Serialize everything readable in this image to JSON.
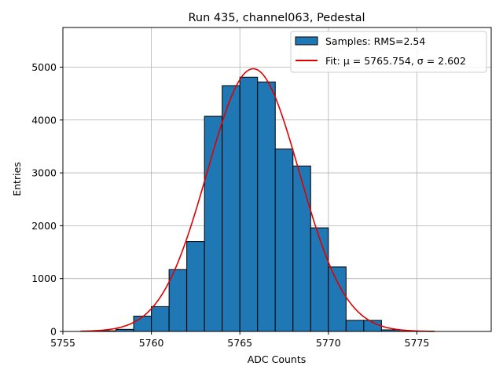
{
  "chart_data": {
    "type": "bar",
    "title": "Run 435, channel063, Pedestal",
    "xlabel": "ADC Counts",
    "ylabel": "Entries",
    "xlim": [
      5755,
      5779.2
    ],
    "ylim": [
      0,
      5750
    ],
    "xticks": [
      5755,
      5760,
      5765,
      5770,
      5775
    ],
    "yticks": [
      0,
      1000,
      2000,
      3000,
      4000,
      5000
    ],
    "grid": true,
    "legend_position": "top-right",
    "histogram": {
      "name": "Samples: RMS=2.54",
      "color": "#1f77b4",
      "bin_width": 1,
      "bin_starts": [
        5756,
        5757,
        5758,
        5759,
        5760,
        5761,
        5762,
        5763,
        5764,
        5765,
        5766,
        5767,
        5768,
        5769,
        5770,
        5771,
        5772,
        5773,
        5774,
        5775
      ],
      "values": [
        5,
        12,
        40,
        290,
        470,
        1170,
        1700,
        4070,
        4650,
        4810,
        4720,
        3450,
        3130,
        1960,
        1220,
        210,
        210,
        30,
        5,
        2
      ]
    },
    "fit": {
      "name": "Fit: μ = 5765.754, σ = 2.602",
      "color": "#e00000",
      "mu": 5765.754,
      "sigma": 2.602,
      "amplitude": 4970,
      "x_range": [
        5756,
        5776
      ]
    }
  }
}
